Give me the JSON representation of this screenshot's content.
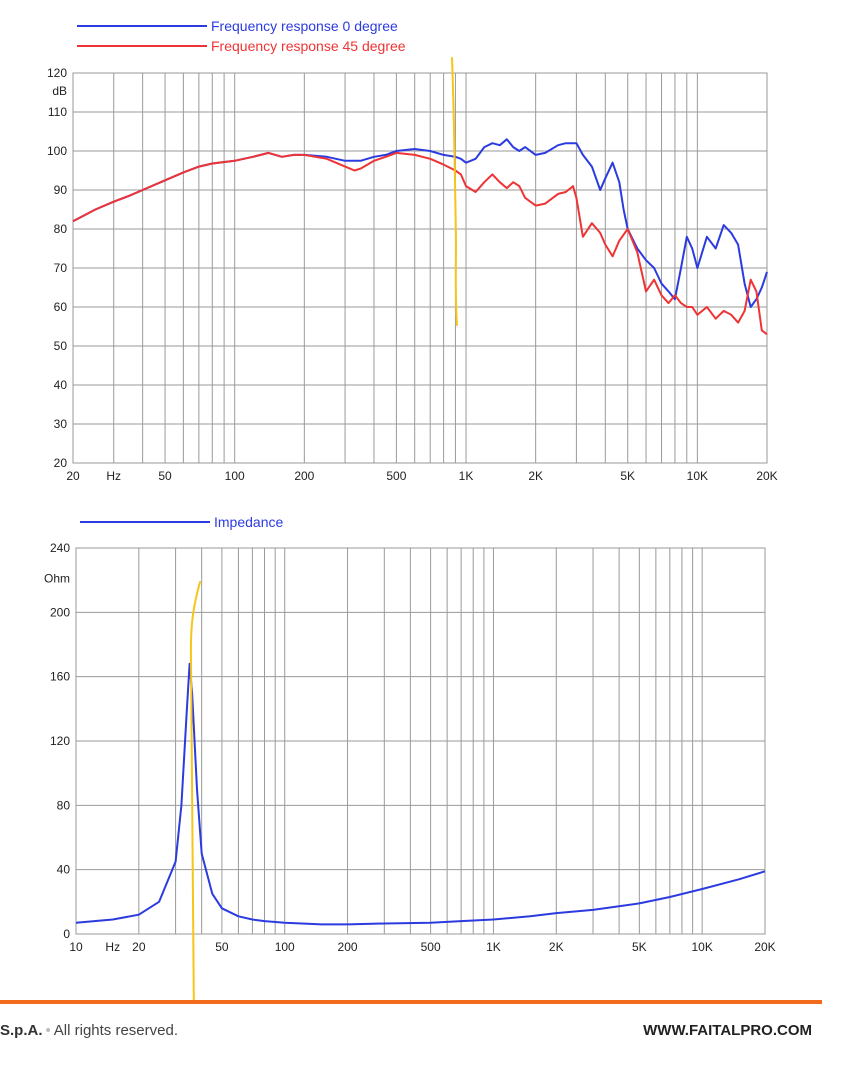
{
  "chart_data": [
    {
      "type": "line",
      "title": "",
      "x_scale": "log",
      "xlim": [
        20,
        20000
      ],
      "ylim": [
        20,
        120
      ],
      "ylabel": "dB",
      "y_ticks": [
        20,
        30,
        40,
        50,
        60,
        70,
        80,
        90,
        100,
        110,
        120
      ],
      "x_tick_labels": [
        {
          "x": 20,
          "label": "20"
        },
        {
          "x": 30,
          "label": "Hz"
        },
        {
          "x": 50,
          "label": "50"
        },
        {
          "x": 100,
          "label": "100"
        },
        {
          "x": 200,
          "label": "200"
        },
        {
          "x": 500,
          "label": "500"
        },
        {
          "x": 1000,
          "label": "1K"
        },
        {
          "x": 2000,
          "label": "2K"
        },
        {
          "x": 5000,
          "label": "5K"
        },
        {
          "x": 10000,
          "label": "10K"
        },
        {
          "x": 20000,
          "label": "20K"
        }
      ],
      "grid": true,
      "legend_position": "top-left",
      "series": [
        {
          "name": "Frequency response 0 degree",
          "color": "#2b3be0",
          "x": [
            20,
            25,
            30,
            35,
            40,
            50,
            60,
            70,
            80,
            100,
            120,
            140,
            160,
            180,
            200,
            250,
            300,
            350,
            400,
            450,
            500,
            600,
            700,
            800,
            900,
            950,
            1000,
            1100,
            1200,
            1300,
            1400,
            1500,
            1600,
            1700,
            1800,
            2000,
            2200,
            2500,
            2700,
            3000,
            3200,
            3500,
            3800,
            4000,
            4300,
            4600,
            4800,
            5000,
            5500,
            6000,
            6500,
            7000,
            7500,
            8000,
            8500,
            9000,
            9500,
            10000,
            11000,
            12000,
            13000,
            14000,
            15000,
            16000,
            17000,
            18000,
            19000,
            20000
          ],
          "values": [
            82,
            85,
            87,
            88.5,
            90,
            92.5,
            94.5,
            96,
            96.8,
            97.5,
            98.5,
            99.5,
            98.5,
            99,
            99,
            98.5,
            97.5,
            97.5,
            98.5,
            99,
            100,
            100.5,
            100,
            99,
            98.5,
            98,
            97,
            98,
            101,
            102,
            101.5,
            103,
            101,
            100,
            101,
            99,
            99.5,
            101.5,
            102,
            102,
            99,
            96,
            90,
            93,
            97,
            92,
            85,
            80,
            75,
            72,
            70,
            66,
            64,
            62,
            70,
            78,
            75,
            70,
            78,
            75,
            81,
            79,
            76,
            66,
            60,
            62,
            65,
            69
          ]
        },
        {
          "name": "Frequency response 45 degree",
          "color": "#ee3434",
          "x": [
            20,
            25,
            30,
            35,
            40,
            50,
            60,
            70,
            80,
            100,
            120,
            140,
            160,
            180,
            200,
            250,
            300,
            330,
            350,
            400,
            450,
            500,
            600,
            700,
            800,
            900,
            950,
            1000,
            1100,
            1200,
            1300,
            1400,
            1500,
            1600,
            1700,
            1800,
            2000,
            2200,
            2500,
            2700,
            2900,
            3000,
            3200,
            3500,
            3800,
            4000,
            4300,
            4600,
            5000,
            5500,
            6000,
            6500,
            7000,
            7500,
            8000,
            8500,
            9000,
            9500,
            10000,
            11000,
            12000,
            13000,
            14000,
            15000,
            16000,
            17000,
            18000,
            19000,
            20000
          ],
          "values": [
            82,
            85,
            87,
            88.5,
            90,
            92.5,
            94.5,
            96,
            96.8,
            97.5,
            98.5,
            99.5,
            98.5,
            99,
            99,
            98,
            96,
            95,
            95.5,
            97.5,
            98.5,
            99.5,
            99,
            98,
            96.5,
            95,
            94,
            91,
            89.5,
            92,
            94,
            92,
            90.5,
            92,
            91,
            88,
            86,
            86.5,
            89,
            89.5,
            91,
            88,
            78,
            81.5,
            79,
            76,
            73,
            77,
            80,
            74,
            64,
            67,
            63,
            61,
            63,
            61,
            60,
            60,
            58,
            60,
            57,
            59,
            58,
            56,
            59,
            67,
            64,
            54,
            53
          ]
        }
      ]
    },
    {
      "type": "line",
      "title": "",
      "x_scale": "log",
      "xlim": [
        10,
        20000
      ],
      "ylim": [
        0,
        240
      ],
      "ylabel": "Ohm",
      "y_ticks": [
        0,
        40,
        80,
        120,
        160,
        200,
        240
      ],
      "x_tick_labels": [
        {
          "x": 10,
          "label": "10"
        },
        {
          "x": 15,
          "label": "Hz"
        },
        {
          "x": 20,
          "label": "20"
        },
        {
          "x": 50,
          "label": "50"
        },
        {
          "x": 100,
          "label": "100"
        },
        {
          "x": 200,
          "label": "200"
        },
        {
          "x": 500,
          "label": "500"
        },
        {
          "x": 1000,
          "label": "1K"
        },
        {
          "x": 2000,
          "label": "2K"
        },
        {
          "x": 5000,
          "label": "5K"
        },
        {
          "x": 10000,
          "label": "10K"
        },
        {
          "x": 20000,
          "label": "20K"
        }
      ],
      "grid": true,
      "legend_position": "top-left",
      "series": [
        {
          "name": "Impedance",
          "color": "#2b3be0",
          "x": [
            10,
            15,
            20,
            25,
            30,
            32,
            34,
            35,
            36,
            38,
            40,
            45,
            50,
            60,
            70,
            80,
            100,
            150,
            200,
            300,
            500,
            700,
            1000,
            1500,
            2000,
            3000,
            5000,
            7000,
            10000,
            15000,
            20000
          ],
          "values": [
            7,
            9,
            12,
            20,
            45,
            80,
            140,
            168,
            150,
            90,
            50,
            25,
            16,
            11,
            9,
            8,
            7,
            6,
            6,
            6.5,
            7,
            8,
            9,
            11,
            13,
            15,
            19,
            23,
            28,
            34,
            39
          ]
        }
      ]
    }
  ],
  "annotations": {
    "marker_color": "#f5c518"
  },
  "footer": {
    "company": "S.p.A.",
    "rights": "All rights reserved.",
    "website": "WWW.FAITALPRO.COM"
  }
}
